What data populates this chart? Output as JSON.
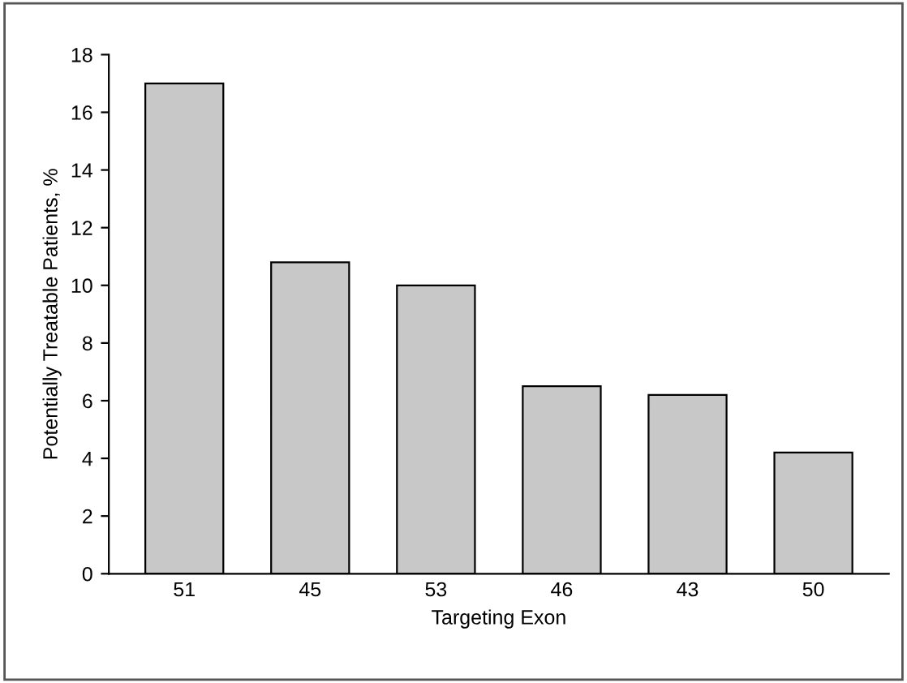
{
  "chart_data": {
    "type": "bar",
    "xlabel": "Targeting Exon",
    "ylabel": "Potentially Treatable Patients, %",
    "categories": [
      "51",
      "45",
      "53",
      "46",
      "43",
      "50"
    ],
    "values": [
      17.0,
      10.8,
      10.0,
      6.5,
      6.2,
      4.2
    ],
    "color": "#c8c8c8",
    "ylim": [
      0,
      18
    ],
    "yticks": [
      0,
      2,
      4,
      6,
      8,
      10,
      12,
      14,
      16,
      18
    ],
    "grid": false
  }
}
